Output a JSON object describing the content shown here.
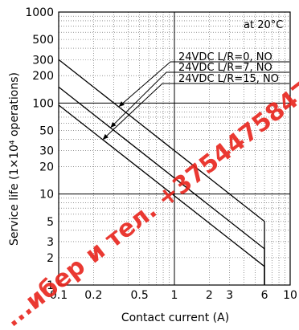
{
  "chart_data": {
    "type": "line",
    "xlabel": "Contact current (A)",
    "ylabel": "Service life (1×10⁴ operations)",
    "x_scale": "log",
    "y_scale": "log",
    "xlim": [
      0.1,
      10
    ],
    "ylim": [
      1,
      1000
    ],
    "x_ticks": [
      0.1,
      0.2,
      0.5,
      1,
      2,
      3,
      6,
      10
    ],
    "x_tick_labels": [
      "0.1",
      "0.2",
      "0.5",
      "1",
      "2",
      "3",
      "6",
      "10"
    ],
    "y_ticks": [
      1,
      2,
      3,
      5,
      10,
      20,
      30,
      50,
      100,
      200,
      300,
      500,
      1000
    ],
    "y_tick_labels": [
      "1",
      "2",
      "3",
      "5",
      "10",
      "20",
      "30",
      "50",
      "100",
      "200",
      "300",
      "500",
      "1000"
    ],
    "grid": true,
    "annotations": [
      "at 20°C"
    ],
    "series": [
      {
        "name": "24VDC L/R=0, NO",
        "x": [
          0.1,
          6,
          6
        ],
        "y": [
          300,
          5,
          1
        ]
      },
      {
        "name": "24VDC L/R=7, NO",
        "x": [
          0.1,
          6,
          6
        ],
        "y": [
          150,
          2.5,
          1
        ]
      },
      {
        "name": "24VDC L/R=15, NO",
        "x": [
          0.1,
          6,
          6
        ],
        "y": [
          95,
          1.6,
          1
        ]
      }
    ]
  },
  "watermark": "...ибер и тел. +375447584780"
}
